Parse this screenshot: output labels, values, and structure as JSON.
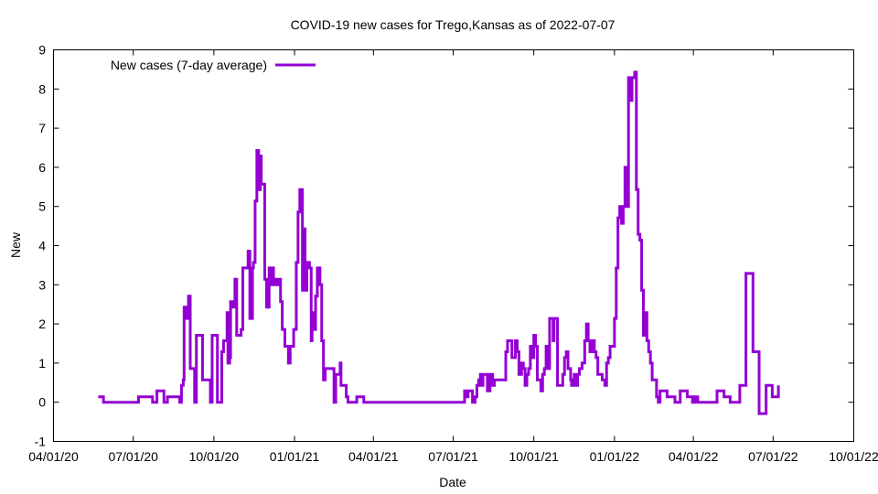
{
  "chart_data": {
    "type": "line",
    "title": "COVID-19 new cases for Trego,Kansas as of 2022-07-07",
    "xlabel": "Date",
    "ylabel": "New",
    "x_units": "days since 2020-04-01",
    "xlim": [
      0,
      913
    ],
    "ylim": [
      -1,
      9
    ],
    "yticks": [
      -1,
      0,
      1,
      2,
      3,
      4,
      5,
      6,
      7,
      8,
      9
    ],
    "xticks": [
      {
        "day": 0,
        "label": "04/01/20"
      },
      {
        "day": 91,
        "label": "07/01/20"
      },
      {
        "day": 183,
        "label": "10/01/20"
      },
      {
        "day": 275,
        "label": "01/01/21"
      },
      {
        "day": 365,
        "label": "04/01/21"
      },
      {
        "day": 456,
        "label": "07/01/21"
      },
      {
        "day": 548,
        "label": "10/01/21"
      },
      {
        "day": 640,
        "label": "01/01/22"
      },
      {
        "day": 730,
        "label": "04/01/22"
      },
      {
        "day": 821,
        "label": "07/01/22"
      },
      {
        "day": 913,
        "label": "10/01/22"
      }
    ],
    "grid": false,
    "legend_position": "top-left",
    "series": [
      {
        "name": "New cases (7-day average)",
        "color": "#9400d3",
        "points": [
          [
            51,
            0.14
          ],
          [
            56,
            0.14
          ],
          [
            57,
            0
          ],
          [
            96,
            0
          ],
          [
            97,
            0.14
          ],
          [
            112,
            0.14
          ],
          [
            113,
            0
          ],
          [
            117,
            0
          ],
          [
            118,
            0.29
          ],
          [
            125,
            0.29
          ],
          [
            126,
            0
          ],
          [
            130,
            0.14
          ],
          [
            143,
            0.14
          ],
          [
            144,
            0
          ],
          [
            146,
            0.43
          ],
          [
            148,
            0.57
          ],
          [
            149,
            2.43
          ],
          [
            152,
            2.14
          ],
          [
            154,
            2.71
          ],
          [
            156,
            0.86
          ],
          [
            159,
            0.86
          ],
          [
            161,
            0
          ],
          [
            163,
            1.71
          ],
          [
            169,
            1.71
          ],
          [
            170,
            0.57
          ],
          [
            177,
            0.57
          ],
          [
            179,
            0
          ],
          [
            181,
            1.71
          ],
          [
            186,
            1.71
          ],
          [
            187,
            0
          ],
          [
            191,
            0
          ],
          [
            192,
            1.29
          ],
          [
            194,
            1.57
          ],
          [
            196,
            1.57
          ],
          [
            198,
            2.29
          ],
          [
            199,
            1.0
          ],
          [
            201,
            1.14
          ],
          [
            202,
            2.57
          ],
          [
            204,
            2.43
          ],
          [
            207,
            3.14
          ],
          [
            209,
            1.71
          ],
          [
            214,
            1.86
          ],
          [
            216,
            3.43
          ],
          [
            219,
            3.43
          ],
          [
            222,
            3.86
          ],
          [
            224,
            2.14
          ],
          [
            227,
            3.43
          ],
          [
            228,
            3.57
          ],
          [
            230,
            5.14
          ],
          [
            232,
            6.43
          ],
          [
            234,
            5.43
          ],
          [
            236,
            6.29
          ],
          [
            237,
            5.57
          ],
          [
            239,
            5.57
          ],
          [
            241,
            3.14
          ],
          [
            243,
            2.43
          ],
          [
            246,
            3.43
          ],
          [
            247,
            3.0
          ],
          [
            249,
            3.43
          ],
          [
            251,
            3.0
          ],
          [
            253,
            3.14
          ],
          [
            255,
            3.0
          ],
          [
            257,
            3.14
          ],
          [
            259,
            2.57
          ],
          [
            261,
            1.86
          ],
          [
            264,
            1.43
          ],
          [
            268,
            1.0
          ],
          [
            270,
            1.43
          ],
          [
            272,
            1.43
          ],
          [
            274,
            1.86
          ],
          [
            277,
            3.57
          ],
          [
            279,
            4.86
          ],
          [
            281,
            5.43
          ],
          [
            283,
            5.43
          ],
          [
            284,
            2.86
          ],
          [
            286,
            4.43
          ],
          [
            287,
            2.86
          ],
          [
            289,
            3.57
          ],
          [
            292,
            3.43
          ],
          [
            294,
            1.57
          ],
          [
            295,
            2.29
          ],
          [
            297,
            1.86
          ],
          [
            299,
            2.71
          ],
          [
            301,
            3.43
          ],
          [
            302,
            3.43
          ],
          [
            304,
            3.0
          ],
          [
            306,
            1.57
          ],
          [
            308,
            0.57
          ],
          [
            310,
            0.86
          ],
          [
            319,
            0.86
          ],
          [
            320,
            0
          ],
          [
            322,
            0.71
          ],
          [
            325,
            0.71
          ],
          [
            327,
            1.0
          ],
          [
            328,
            0.43
          ],
          [
            332,
            0.43
          ],
          [
            334,
            0.14
          ],
          [
            336,
            0
          ],
          [
            344,
            0
          ],
          [
            346,
            0.14
          ],
          [
            352,
            0.14
          ],
          [
            354,
            0
          ],
          [
            467,
            0
          ],
          [
            469,
            0.29
          ],
          [
            471,
            0.14
          ],
          [
            473,
            0.29
          ],
          [
            475,
            0.29
          ],
          [
            478,
            0
          ],
          [
            481,
            0.14
          ],
          [
            483,
            0.43
          ],
          [
            485,
            0.57
          ],
          [
            487,
            0.71
          ],
          [
            488,
            0.43
          ],
          [
            490,
            0.71
          ],
          [
            493,
            0.71
          ],
          [
            495,
            0.29
          ],
          [
            498,
            0.71
          ],
          [
            501,
            0.43
          ],
          [
            503,
            0.57
          ],
          [
            510,
            0.57
          ],
          [
            516,
            1.29
          ],
          [
            518,
            1.57
          ],
          [
            521,
            1.57
          ],
          [
            523,
            1.14
          ],
          [
            527,
            1.57
          ],
          [
            529,
            1.29
          ],
          [
            531,
            0.71
          ],
          [
            534,
            1.0
          ],
          [
            536,
            0.86
          ],
          [
            538,
            0.43
          ],
          [
            540,
            0.71
          ],
          [
            542,
            0.86
          ],
          [
            544,
            1.43
          ],
          [
            545,
            1.14
          ],
          [
            548,
            1.71
          ],
          [
            550,
            1.43
          ],
          [
            552,
            0.57
          ],
          [
            554,
            0.57
          ],
          [
            556,
            0.29
          ],
          [
            558,
            0.71
          ],
          [
            560,
            0.86
          ],
          [
            562,
            1.43
          ],
          [
            564,
            0.86
          ],
          [
            566,
            2.14
          ],
          [
            568,
            2.14
          ],
          [
            570,
            1.57
          ],
          [
            571,
            2.14
          ],
          [
            573,
            2.14
          ],
          [
            575,
            0.43
          ],
          [
            579,
            0.43
          ],
          [
            581,
            0.71
          ],
          [
            583,
            1.14
          ],
          [
            585,
            1.29
          ],
          [
            587,
            0.86
          ],
          [
            590,
            0.57
          ],
          [
            591,
            0.43
          ],
          [
            594,
            0.71
          ],
          [
            596,
            0.43
          ],
          [
            598,
            0.71
          ],
          [
            600,
            0.86
          ],
          [
            603,
            1.0
          ],
          [
            606,
            1.57
          ],
          [
            608,
            2.0
          ],
          [
            610,
            1.57
          ],
          [
            612,
            1.29
          ],
          [
            614,
            1.57
          ],
          [
            617,
            1.29
          ],
          [
            619,
            1.14
          ],
          [
            621,
            0.71
          ],
          [
            624,
            0.71
          ],
          [
            626,
            0.57
          ],
          [
            629,
            0.43
          ],
          [
            631,
            1.0
          ],
          [
            633,
            1.14
          ],
          [
            635,
            1.43
          ],
          [
            637,
            1.43
          ],
          [
            640,
            2.14
          ],
          [
            642,
            3.43
          ],
          [
            644,
            4.71
          ],
          [
            646,
            5.0
          ],
          [
            648,
            4.57
          ],
          [
            650,
            5.0
          ],
          [
            652,
            6.0
          ],
          [
            654,
            5.0
          ],
          [
            656,
            8.29
          ],
          [
            658,
            7.71
          ],
          [
            660,
            8.29
          ],
          [
            663,
            8.43
          ],
          [
            665,
            5.43
          ],
          [
            667,
            4.29
          ],
          [
            669,
            4.14
          ],
          [
            671,
            2.86
          ],
          [
            673,
            1.71
          ],
          [
            675,
            2.29
          ],
          [
            677,
            1.57
          ],
          [
            679,
            1.29
          ],
          [
            681,
            1.0
          ],
          [
            683,
            0.57
          ],
          [
            686,
            0.57
          ],
          [
            688,
            0.14
          ],
          [
            690,
            0
          ],
          [
            692,
            0.29
          ],
          [
            698,
            0.29
          ],
          [
            700,
            0.14
          ],
          [
            706,
            0.14
          ],
          [
            709,
            0
          ],
          [
            713,
            0
          ],
          [
            715,
            0.29
          ],
          [
            721,
            0.29
          ],
          [
            723,
            0.14
          ],
          [
            727,
            0.14
          ],
          [
            729,
            0
          ],
          [
            732,
            0.14
          ],
          [
            735,
            0
          ],
          [
            754,
            0
          ],
          [
            757,
            0.29
          ],
          [
            763,
            0.29
          ],
          [
            765,
            0.14
          ],
          [
            770,
            0.14
          ],
          [
            772,
            0
          ],
          [
            781,
            0
          ],
          [
            783,
            0.43
          ],
          [
            788,
            0.43
          ],
          [
            790,
            3.29
          ],
          [
            796,
            3.29
          ],
          [
            798,
            1.29
          ],
          [
            804,
            1.29
          ],
          [
            805,
            -0.29
          ],
          [
            811,
            -0.29
          ],
          [
            813,
            0.43
          ],
          [
            818,
            0.43
          ],
          [
            820,
            0.14
          ],
          [
            826,
            0.14
          ],
          [
            827,
            0.43
          ]
        ]
      }
    ]
  }
}
